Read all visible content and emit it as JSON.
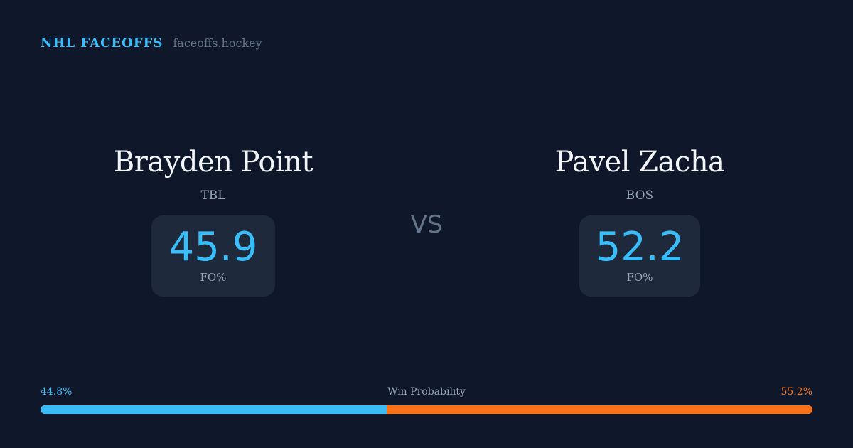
{
  "brand": {
    "name": "NHL FACEOFFS",
    "site": "faceoffs.hockey"
  },
  "players": [
    {
      "name": "Brayden Point",
      "team": "TBL",
      "fo_pct": "45.9",
      "fo_label": "FO%"
    },
    {
      "name": "Pavel Zacha",
      "team": "BOS",
      "fo_pct": "52.2",
      "fo_label": "FO%"
    }
  ],
  "vs_label": "VS",
  "win_probability": {
    "label": "Win Probability",
    "left": "44.8%",
    "right": "55.2%",
    "left_value": 44.8,
    "right_value": 55.2,
    "left_color": "#38bdf8",
    "right_color": "#f97316"
  }
}
